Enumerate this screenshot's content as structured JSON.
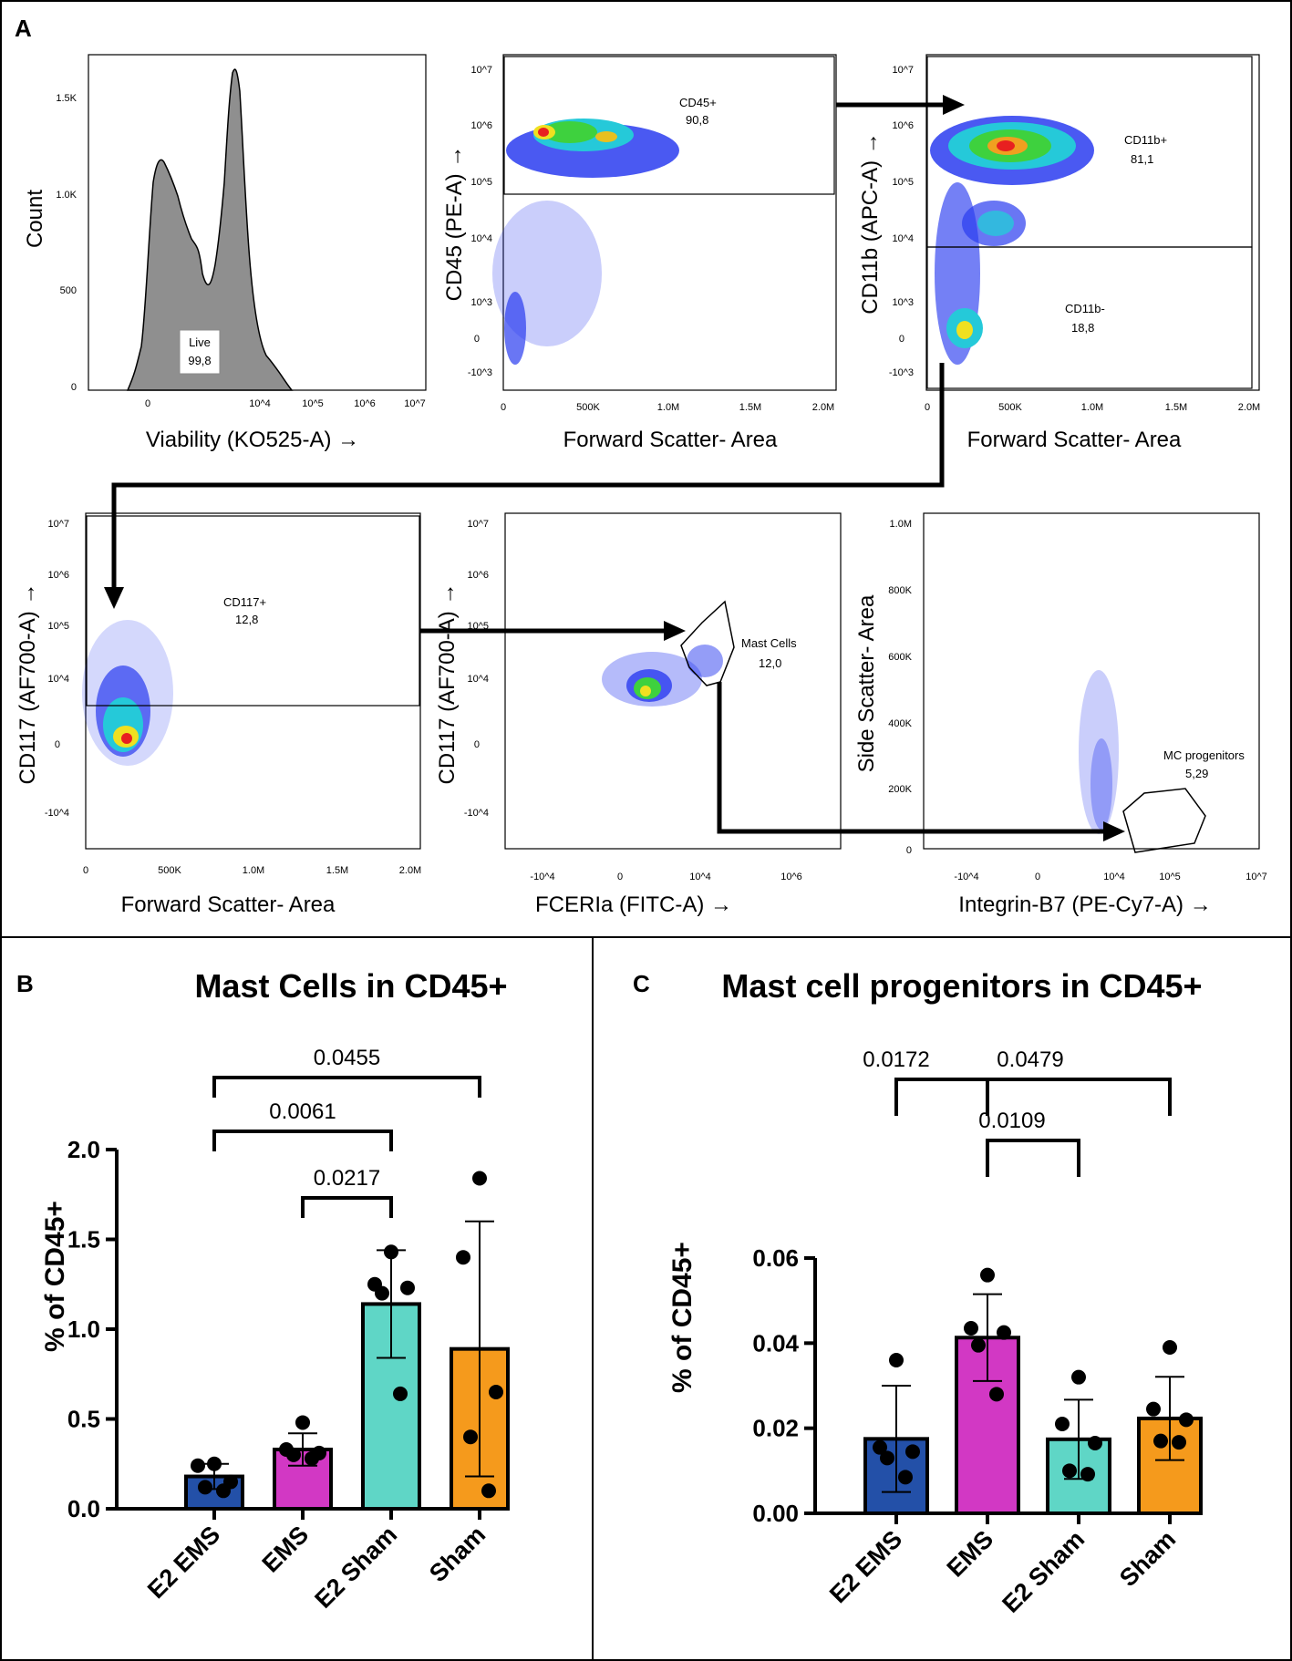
{
  "panel_letters": {
    "a": "A",
    "b": "B",
    "c": "C"
  },
  "flow": {
    "plot1": {
      "xlabel": "Viability (KO525-A) →",
      "ylabel": "Count",
      "yticks": [
        "1.5K",
        "1.0K",
        "500",
        "0"
      ],
      "xticks": [
        "0",
        "10^4",
        "10^5",
        "10^6",
        "10^7"
      ],
      "gate_name": "Live",
      "gate_value": "99,8"
    },
    "plot2": {
      "xlabel": "Forward Scatter- Area",
      "ylabel": "CD45 (PE-A) →",
      "yticks": [
        "10^7",
        "10^6",
        "10^5",
        "10^4",
        "10^3",
        "0",
        "-10^3"
      ],
      "xticks": [
        "0",
        "500K",
        "1.0M",
        "1.5M",
        "2.0M"
      ],
      "gate_name": "CD45+",
      "gate_value": "90,8"
    },
    "plot3": {
      "xlabel": "Forward Scatter- Area",
      "ylabel": "CD11b (APC-A) →",
      "yticks": [
        "10^7",
        "10^6",
        "10^5",
        "10^4",
        "10^3",
        "0",
        "-10^3"
      ],
      "xticks": [
        "0",
        "500K",
        "1.0M",
        "1.5M",
        "2.0M"
      ],
      "gate1_name": "CD11b+",
      "gate1_value": "81,1",
      "gate2_name": "CD11b-",
      "gate2_value": "18,8"
    },
    "plot4": {
      "xlabel": "Forward Scatter- Area",
      "ylabel": "CD117 (AF700-A) →",
      "yticks": [
        "10^7",
        "10^6",
        "10^5",
        "10^4",
        "0",
        "-10^4"
      ],
      "xticks": [
        "0",
        "500K",
        "1.0M",
        "1.5M",
        "2.0M"
      ],
      "gate_name": "CD117+",
      "gate_value": "12,8"
    },
    "plot5": {
      "xlabel": "FCERIa (FITC-A) →",
      "ylabel": "CD117 (AF700-A) →",
      "yticks": [
        "10^7",
        "10^6",
        "10^5",
        "10^4",
        "0",
        "-10^4"
      ],
      "xticks": [
        "-10^4",
        "0",
        "10^4",
        "10^6"
      ],
      "gate_name": "Mast Cells",
      "gate_value": "12,0"
    },
    "plot6": {
      "xlabel": "Integrin-B7 (PE-Cy7-A) →",
      "ylabel": "Side Scatter- Area",
      "yticks": [
        "1.0M",
        "800K",
        "600K",
        "400K",
        "200K",
        "0"
      ],
      "xticks": [
        "-10^4",
        "0",
        "10^4",
        "10^5",
        "10^7"
      ],
      "gate_name": "MC progenitors",
      "gate_value": "5,29"
    }
  },
  "chart_data": [
    {
      "type": "bar",
      "panel": "B",
      "title": "Mast Cells in CD45+",
      "ylabel": "% of CD45+",
      "xlabel": "",
      "ylim": [
        0,
        2.0
      ],
      "yticks": [
        "0.0",
        "0.5",
        "1.0",
        "1.5",
        "2.0"
      ],
      "categories": [
        "E2 EMS",
        "EMS",
        "E2 Sham",
        "Sham"
      ],
      "colors": [
        "#2350a8",
        "#d238c4",
        "#5fd6c6",
        "#f59a1c"
      ],
      "values": [
        0.18,
        0.33,
        1.14,
        0.89
      ],
      "errors": [
        0.07,
        0.09,
        0.3,
        0.71
      ],
      "points": [
        [
          0.25,
          0.24,
          0.15,
          0.12,
          0.1
        ],
        [
          0.48,
          0.33,
          0.31,
          0.3,
          0.28
        ],
        [
          1.43,
          1.25,
          1.23,
          1.2,
          0.64
        ],
        [
          1.84,
          1.4,
          0.65,
          0.4,
          0.1
        ]
      ],
      "comparisons": [
        {
          "from": 0,
          "to": 3,
          "label": "0.0455"
        },
        {
          "from": 0,
          "to": 2,
          "label": "0.0061"
        },
        {
          "from": 1,
          "to": 2,
          "label": "0.0217"
        }
      ]
    },
    {
      "type": "bar",
      "panel": "C",
      "title": "Mast cell progenitors in CD45+",
      "ylabel": "% of CD45+",
      "xlabel": "",
      "ylim": [
        0,
        0.06
      ],
      "yticks": [
        "0.00",
        "0.02",
        "0.04",
        "0.06"
      ],
      "categories": [
        "E2 EMS",
        "EMS",
        "E2 Sham",
        "Sham"
      ],
      "colors": [
        "#2350a8",
        "#d238c4",
        "#5fd6c6",
        "#f59a1c"
      ],
      "values": [
        0.0175,
        0.0413,
        0.0174,
        0.0223
      ],
      "errors": [
        0.0125,
        0.0102,
        0.0093,
        0.0098
      ],
      "points": [
        [
          0.036,
          0.0155,
          0.0145,
          0.013,
          0.0085
        ],
        [
          0.056,
          0.0435,
          0.0425,
          0.0395,
          0.028
        ],
        [
          0.032,
          0.021,
          0.0165,
          0.01,
          0.0092
        ],
        [
          0.039,
          0.0245,
          0.022,
          0.017,
          0.0167
        ]
      ],
      "comparisons": [
        {
          "from": 0,
          "to": 1,
          "label": "0.0172"
        },
        {
          "from": 1,
          "to": 3,
          "label": "0.0479"
        },
        {
          "from": 1,
          "to": 2,
          "label": "0.0109"
        }
      ]
    }
  ]
}
